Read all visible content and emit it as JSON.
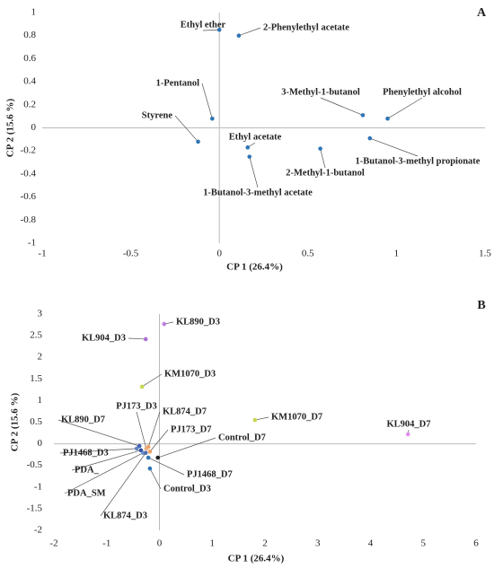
{
  "chart_data": [
    {
      "type": "scatter",
      "panel_label": "A",
      "x_label": "CP 1 (26.4%)",
      "y_label": "CP 2 (15.6 %)",
      "xlim": [
        -1,
        1.5
      ],
      "ylim": [
        -1,
        1
      ],
      "xticks": [
        -1,
        -0.5,
        0,
        0.5,
        1,
        1.5
      ],
      "yticks": [
        -1,
        -0.8,
        -0.6,
        -0.4,
        -0.2,
        0,
        0.2,
        0.4,
        0.6,
        0.8,
        1
      ],
      "color": "#2e75b6",
      "labels": [
        "Ethyl ether",
        "2-Phenylethyl acetate",
        "1-Pentanol",
        "Styrene",
        "3-Methyl-1-butanol",
        "Phenylethyl alcohol",
        "Ethyl acetate",
        "1-Butanol-3-methyl acetate",
        "2-Methyl-1-butanol",
        "1-Butanol-3-methyl propionate"
      ],
      "x": [
        0.0,
        0.11,
        -0.04,
        -0.12,
        0.81,
        0.95,
        0.16,
        0.17,
        0.57,
        0.85
      ],
      "values": [
        0.85,
        0.8,
        0.08,
        -0.12,
        0.11,
        0.08,
        -0.17,
        -0.25,
        -0.18,
        -0.09
      ]
    },
    {
      "type": "scatter",
      "panel_label": "B",
      "x_label": "CP 1 (26.4%)",
      "y_label": "CP 2 (15.6 %)",
      "xlim": [
        -2,
        6
      ],
      "ylim": [
        -2,
        3
      ],
      "xticks": [
        -2,
        -1,
        0,
        1,
        2,
        3,
        4,
        5,
        6
      ],
      "yticks": [
        -2,
        -1.5,
        -1,
        -0.5,
        0,
        0.5,
        1,
        1.5,
        2,
        2.5,
        3
      ],
      "labels": [
        "KL890_D3",
        "KL904_D3",
        "KM1070_D3",
        "KM1070_D7",
        "KL904_D7",
        "KL874_D7",
        "PJ173_D3",
        "PJ173_D7",
        "KL890_D7",
        "PJ1468_D3",
        "PDA_",
        "PDA_SM",
        "KL874_D3",
        "Control_D7",
        "PJ1468_D7",
        "Control_D3"
      ],
      "x": [
        0.09,
        -0.26,
        -0.33,
        1.81,
        4.71,
        -0.21,
        -0.25,
        -0.18,
        -0.38,
        -0.43,
        -0.35,
        -0.31,
        -0.26,
        -0.03,
        -0.21,
        -0.18
      ],
      "values": [
        2.77,
        2.42,
        1.32,
        0.55,
        0.22,
        -0.07,
        -0.11,
        -0.18,
        -0.05,
        -0.11,
        -0.15,
        -0.21,
        -0.21,
        -0.32,
        -0.32,
        -0.57
      ],
      "colors": [
        "#c07ee0",
        "#b070d8",
        "#c8d850",
        "#c8d850",
        "#e090e8",
        "#f0a060",
        "#e8b080",
        "#f0a060",
        "#4060b0",
        "#6080c0",
        "#3050a0",
        "#7090d0",
        "#5070b0",
        "#222222",
        "#2e75b6",
        "#2e75b6"
      ]
    }
  ]
}
